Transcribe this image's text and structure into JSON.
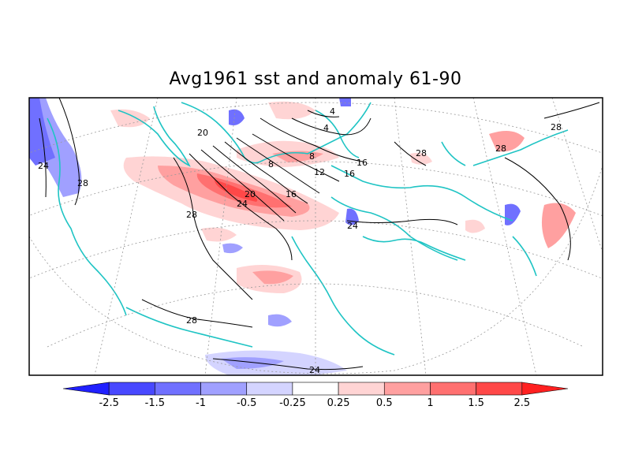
{
  "title": "Avg1961 sst and anomaly 61-90",
  "colors": {
    "coast": "#1fc4c4",
    "contour": "#000000",
    "grid": "#9a9a9a",
    "frame": "#000000"
  },
  "contour_labels": [
    "4",
    "4",
    "8",
    "8",
    "12",
    "16",
    "16",
    "16",
    "20",
    "20",
    "24",
    "24",
    "24",
    "24",
    "28",
    "28",
    "28",
    "28",
    "28",
    "28"
  ],
  "colorbar": {
    "ticks": [
      "-2.5",
      "-1.5",
      "-1",
      "-0.5",
      "-0.25",
      "0.25",
      "0.5",
      "1",
      "1.5",
      "2.5"
    ],
    "colors": [
      "#2020ff",
      "#4848ff",
      "#7070ff",
      "#a0a0ff",
      "#d4d4ff",
      "#ffffff",
      "#ffd4d4",
      "#ffa0a0",
      "#ff7070",
      "#ff4848",
      "#ff2020"
    ]
  }
}
